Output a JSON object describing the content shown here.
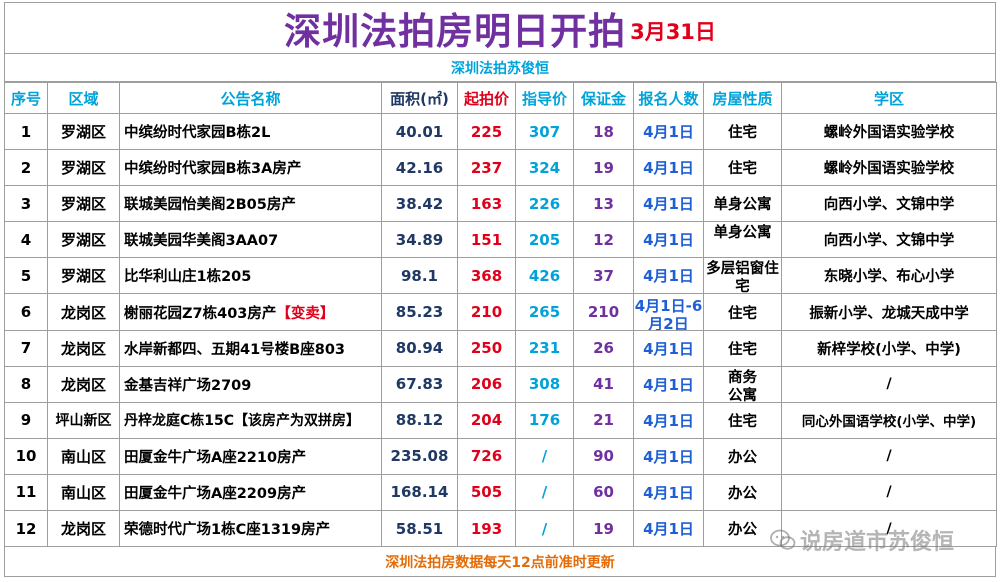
{
  "title": "深圳法拍房明日开拍",
  "date": "3月31日",
  "subtitle": "深圳法拍苏俊恒",
  "headers": [
    "序号",
    "区域",
    "公告名称",
    "面积(㎡)",
    "起拍价",
    "指导价",
    "保证金",
    "报名人数",
    "房屋性质",
    "学区"
  ],
  "rows": [
    {
      "no": "1",
      "district": "罗湖区",
      "name": "中缤纷时代家园B栋2L",
      "tag": "",
      "area": "40.01",
      "start": "225",
      "guide": "307",
      "deposit": "18",
      "count": "4月1日",
      "kind": "住宅",
      "school": "螺岭外国语实验学校"
    },
    {
      "no": "2",
      "district": "罗湖区",
      "name": "中缤纷时代家园B栋3A房产",
      "tag": "",
      "area": "42.16",
      "start": "237",
      "guide": "324",
      "deposit": "19",
      "count": "4月1日",
      "kind": "住宅",
      "school": "螺岭外国语实验学校"
    },
    {
      "no": "3",
      "district": "罗湖区",
      "name": "联城美园怡美阁2B05房产",
      "tag": "",
      "area": "38.42",
      "start": "163",
      "guide": "226",
      "deposit": "13",
      "count": "4月1日",
      "kind": "单身公寓",
      "school": "向西小学、文锦中学"
    },
    {
      "no": "4",
      "district": "罗湖区",
      "name": "联城美园华美阁3AA07",
      "tag": "",
      "area": "34.89",
      "start": "151",
      "guide": "205",
      "deposit": "12",
      "count": "4月1日",
      "kind": "单身公寓",
      "school": "向西小学、文锦中学"
    },
    {
      "no": "5",
      "district": "罗湖区",
      "name": "比华利山庄1栋205",
      "tag": "",
      "area": "98.1",
      "start": "368",
      "guide": "426",
      "deposit": "37",
      "count": "4月1日",
      "kind": "多层铝窗住宅",
      "school": "东晓小学、布心小学"
    },
    {
      "no": "6",
      "district": "龙岗区",
      "name": "榭丽花园Z7栋403房产",
      "tag": "【变卖】",
      "area": "85.23",
      "start": "210",
      "guide": "265",
      "deposit": "210",
      "count": "4月1日-6月2日",
      "kind": "住宅",
      "school": "振新小学、龙城天成中学"
    },
    {
      "no": "7",
      "district": "龙岗区",
      "name": "水岸新都四、五期41号楼B座803",
      "tag": "",
      "area": "80.94",
      "start": "250",
      "guide": "231",
      "deposit": "26",
      "count": "4月1日",
      "kind": "住宅",
      "school": "新梓学校(小学、中学)"
    },
    {
      "no": "8",
      "district": "龙岗区",
      "name": "金基吉祥广场2709",
      "tag": "",
      "area": "67.83",
      "start": "206",
      "guide": "308",
      "deposit": "41",
      "count": "4月1日",
      "kind": "商务公寓",
      "school": "/"
    },
    {
      "no": "9",
      "district": "坪山新区",
      "name": "丹梓龙庭C栋15C【该房产为双拼房】",
      "tag": "",
      "area": "88.12",
      "start": "204",
      "guide": "176",
      "deposit": "21",
      "count": "4月1日",
      "kind": "住宅",
      "school": "同心外国语学校(小学、中学)"
    },
    {
      "no": "10",
      "district": "南山区",
      "name": "田厦金牛广场A座2210房产",
      "tag": "",
      "area": "235.08",
      "start": "726",
      "guide": "/",
      "deposit": "90",
      "count": "4月1日",
      "kind": "办公",
      "school": "/"
    },
    {
      "no": "11",
      "district": "南山区",
      "name": "田厦金牛广场A座2209房产",
      "tag": "",
      "area": "168.14",
      "start": "505",
      "guide": "/",
      "deposit": "60",
      "count": "4月1日",
      "kind": "办公",
      "school": "/"
    },
    {
      "no": "12",
      "district": "龙岗区",
      "name": "荣德时代广场1栋C座1319房产",
      "tag": "",
      "area": "58.51",
      "start": "193",
      "guide": "/",
      "deposit": "19",
      "count": "4月1日",
      "kind": "办公",
      "school": "/"
    }
  ],
  "footer": "深圳法拍房数据每天12点前准时更新",
  "watermark": "说房道市苏俊恒",
  "icons": {
    "watermark": "wechat-icon"
  },
  "colors": {
    "title": "#7030a0",
    "date": "#e0001b",
    "subtitle": "#00a3d9",
    "start_price": "#e0001b",
    "guide_price": "#00a3d9",
    "deposit": "#7030a0",
    "footer": "#e36c09"
  }
}
